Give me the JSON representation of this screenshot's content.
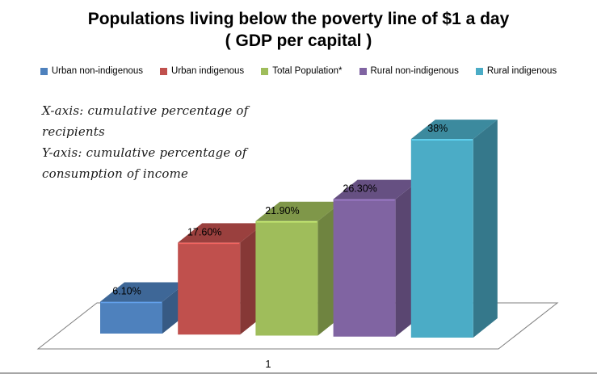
{
  "title": {
    "line1": "Populations living below the poverty line of $1 a day",
    "line2": "( GDP per capital )"
  },
  "annotation": {
    "lines": [
      "X-axis: cumulative percentage of",
      "recipients",
      "Y-axis: cumulative percentage of",
      "consumption of income"
    ]
  },
  "chart_data": {
    "type": "bar",
    "subtype": "3d-column",
    "title": "Populations living below the poverty line of $1 a day ( GDP per capital )",
    "categories": [
      "1"
    ],
    "series": [
      {
        "name": "Urban non-indigenous",
        "value": 6.1,
        "label": "6.10%",
        "color": "#4E81BD"
      },
      {
        "name": "Urban indigenous",
        "value": 17.6,
        "label": "17.60%",
        "color": "#C0504D"
      },
      {
        "name": "Total Population*",
        "value": 21.9,
        "label": "21.90%",
        "color": "#9FBD5B"
      },
      {
        "name": "Rural non-indigenous",
        "value": 26.3,
        "label": "26.30%",
        "color": "#8064A2"
      },
      {
        "name": "Rural indigenous",
        "value": 38,
        "label": "38%",
        "color": "#4BACC6"
      }
    ],
    "xlabel": "cumulative percentage of recipients",
    "ylabel": "cumulative percentage of consumption of income",
    "ylim": [
      0,
      40
    ],
    "gridlines": false,
    "axes_visible": false,
    "legend_position": "top",
    "floor_outline_color": "#7F7F7F",
    "divider_color": "#A6A6A6",
    "label_color": "#000000"
  }
}
